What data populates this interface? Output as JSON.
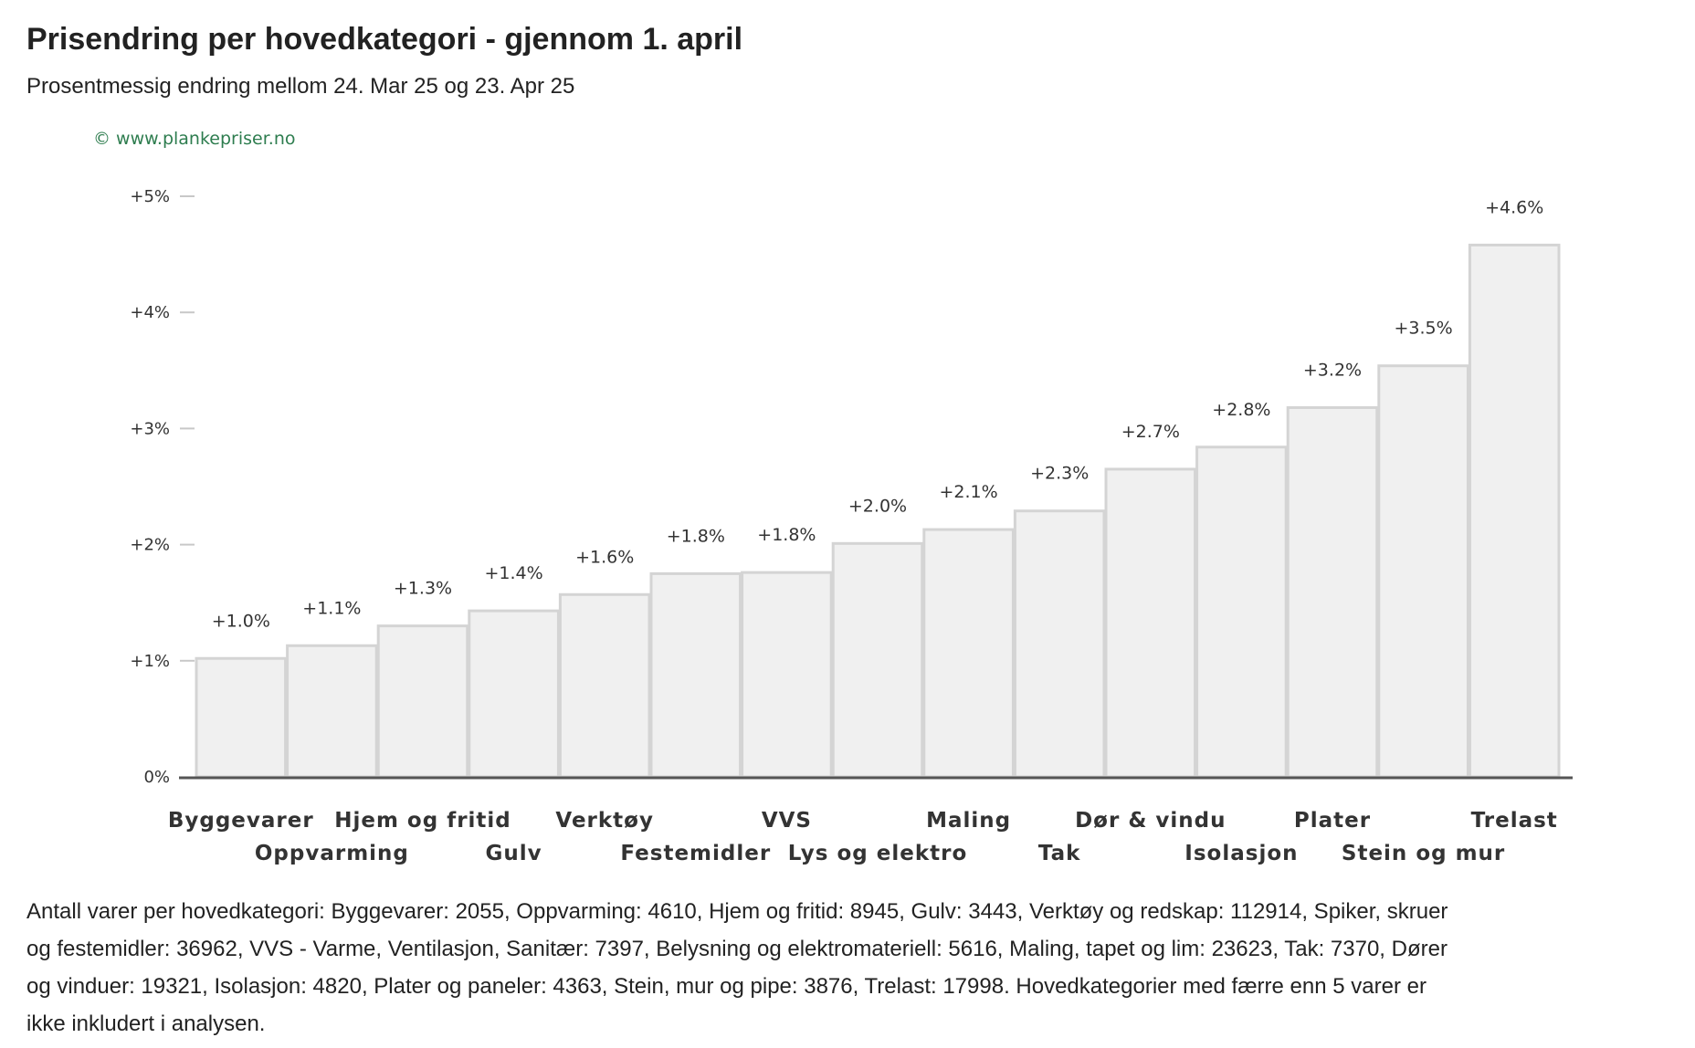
{
  "header": {
    "title": "Prisendring per hovedkategori - gjennom 1. april",
    "subtitle": "Prosentmessig endring mellom 24. Mar 25 og 23. Apr 25",
    "copyright": "© www.plankepriser.no"
  },
  "chart_data": {
    "type": "bar",
    "title": "Prisendring per hovedkategori - gjennom 1. april",
    "subtitle": "Prosentmessig endring mellom 24. Mar 25 og 23. Apr 25",
    "xlabel": "",
    "ylabel": "",
    "ylim": [
      0,
      5
    ],
    "yticks": [
      {
        "value": 0,
        "label": "0%"
      },
      {
        "value": 1,
        "label": "+1%"
      },
      {
        "value": 2,
        "label": "+2%"
      },
      {
        "value": 3,
        "label": "+3%"
      },
      {
        "value": 4,
        "label": "+4%"
      },
      {
        "value": 5,
        "label": "+5%"
      }
    ],
    "grid": false,
    "categories": [
      "Byggevarer",
      "Oppvarming",
      "Hjem og fritid",
      "Gulv",
      "Verktøy",
      "Festemidler",
      "VVS",
      "Lys og elektro",
      "Maling",
      "Tak",
      "Dør & vindu",
      "Isolasjon",
      "Plater",
      "Stein og mur",
      "Trelast"
    ],
    "values": [
      1.02,
      1.13,
      1.3,
      1.43,
      1.57,
      1.75,
      1.76,
      2.01,
      2.13,
      2.29,
      2.65,
      2.84,
      3.18,
      3.54,
      4.58
    ],
    "data_labels": [
      "+1.0%",
      "+1.1%",
      "+1.3%",
      "+1.4%",
      "+1.6%",
      "+1.8%",
      "+1.8%",
      "+2.0%",
      "+2.1%",
      "+2.3%",
      "+2.7%",
      "+2.8%",
      "+3.2%",
      "+3.5%",
      "+4.6%"
    ],
    "colors": {
      "bar_fill": "#f0f0f0",
      "bar_stroke": "#d4d4d4",
      "axis": "#555555"
    }
  },
  "footnote": "Antall varer per hovedkategori: Byggevarer: 2055, Oppvarming: 4610, Hjem og fritid: 8945, Gulv: 3443, Verktøy og redskap: 112914, Spiker, skruer og festemidler: 36962, VVS - Varme, Ventilasjon, Sanitær: 7397, Belysning og elektromateriell: 5616, Maling, tapet og lim: 23623, Tak: 7370, Dører og vinduer: 19321, Isolasjon: 4820, Plater og paneler: 4363, Stein, mur og pipe: 3876, Trelast: 17998. Hovedkategorier med færre enn 5 varer er ikke inkludert i analysen."
}
